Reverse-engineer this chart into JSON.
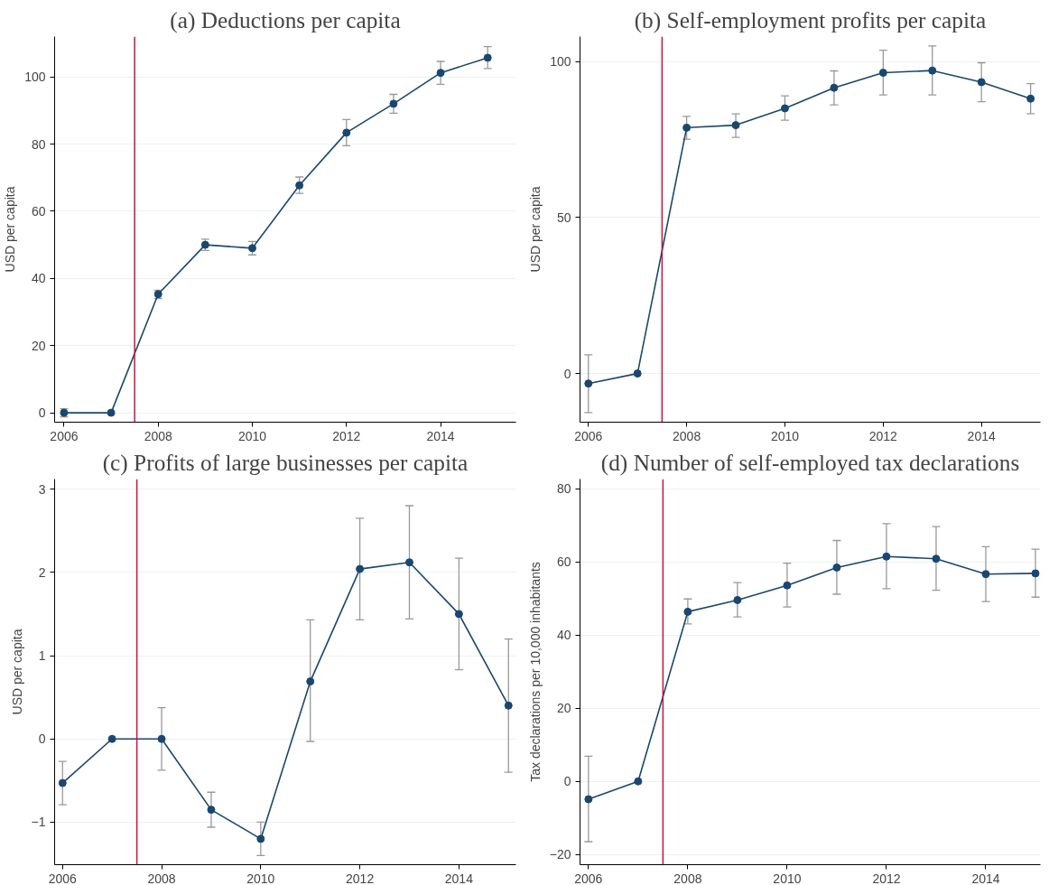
{
  "chart_data": [
    {
      "type": "line",
      "title": "(a) Deductions per capita",
      "ylabel": "USD per capita",
      "x": [
        2006,
        2007,
        2008,
        2009,
        2010,
        2011,
        2012,
        2013,
        2014,
        2015
      ],
      "xlim": [
        2005.8,
        2015.6
      ],
      "xticks": [
        2006,
        2008,
        2010,
        2012,
        2014
      ],
      "ylim": [
        -2.8,
        112
      ],
      "yticks": [
        0,
        20,
        40,
        60,
        80,
        100
      ],
      "grid": "y",
      "marker": "circle",
      "line_style": "solid",
      "series": [
        {
          "color": "#1a476f",
          "values": [
            0,
            0,
            35.3,
            50,
            49,
            67.7,
            83.4,
            92,
            101.2,
            105.7
          ],
          "errors": [
            [
              -1.2,
              1.2
            ],
            null,
            [
              34,
              36.5
            ],
            [
              48.3,
              51.7
            ],
            [
              47,
              51
            ],
            [
              65.3,
              70.2
            ],
            [
              79.5,
              87.3
            ],
            [
              89.2,
              94.8
            ],
            [
              97.8,
              104.6
            ],
            [
              102.5,
              109
            ]
          ]
        }
      ],
      "ref_lines": [
        {
          "axis": "x",
          "value": 2007.5,
          "color": "#d0103a"
        }
      ]
    },
    {
      "type": "line",
      "title": "(b) Self-employment profits per capita",
      "ylabel": "USD per capita",
      "x": [
        2006,
        2007,
        2008,
        2009,
        2010,
        2011,
        2012,
        2013,
        2014,
        2015
      ],
      "xlim": [
        2005.83,
        2015.2
      ],
      "xticks": [
        2006,
        2008,
        2010,
        2012,
        2014
      ],
      "ylim": [
        -15.6,
        108
      ],
      "yticks": [
        0,
        50,
        100
      ],
      "grid": "y",
      "marker": "circle",
      "line_style": "solid",
      "series": [
        {
          "color": "#1a476f",
          "values": [
            -3.2,
            0,
            78.8,
            79.6,
            85,
            91.6,
            96.4,
            97.1,
            93.4,
            88.1
          ],
          "errors": [
            [
              -12.5,
              6
            ],
            null,
            [
              75.1,
              82.4
            ],
            [
              75.7,
              83.2
            ],
            [
              81.2,
              89
            ],
            [
              86.1,
              97
            ],
            [
              89.3,
              103.6
            ],
            [
              89.3,
              105
            ],
            [
              87.1,
              99.6
            ],
            [
              83.3,
              92.9
            ]
          ]
        }
      ],
      "ref_lines": [
        {
          "axis": "x",
          "value": 2007.5,
          "color": "#d0103a"
        }
      ]
    },
    {
      "type": "line",
      "title": "(c) Profits of large businesses per capita",
      "ylabel": "USD per capita",
      "x": [
        2006,
        2007,
        2008,
        2009,
        2010,
        2011,
        2012,
        2013,
        2014,
        2015
      ],
      "xlim": [
        2005.84,
        2015.15
      ],
      "xticks": [
        2006,
        2008,
        2010,
        2012,
        2014
      ],
      "ylim": [
        -1.51,
        3.12
      ],
      "yticks": [
        -1,
        0,
        1,
        2,
        3
      ],
      "grid": "y",
      "marker": "circle",
      "line_style": "solid",
      "series": [
        {
          "color": "#1a476f",
          "values": [
            -0.53,
            0,
            0,
            -0.85,
            -1.2,
            0.69,
            2.04,
            2.12,
            1.5,
            0.4
          ],
          "errors": [
            [
              -0.79,
              -0.27
            ],
            null,
            [
              -0.375,
              0.375
            ],
            [
              -1.06,
              -0.64
            ],
            [
              -1.4,
              -1.0
            ],
            [
              -0.03,
              1.43
            ],
            [
              1.43,
              2.65
            ],
            [
              1.44,
              2.8
            ],
            [
              0.83,
              2.17
            ],
            [
              -0.4,
              1.2
            ]
          ]
        }
      ],
      "ref_lines": [
        {
          "axis": "x",
          "value": 2007.5,
          "color": "#d0103a"
        }
      ]
    },
    {
      "type": "line",
      "title": "(d) Number of self-employed tax declarations",
      "ylabel": "Tax declarations per 10,000 inhabitants",
      "x": [
        2006,
        2007,
        2008,
        2009,
        2010,
        2011,
        2012,
        2013,
        2014,
        2015
      ],
      "xlim": [
        2005.83,
        2015.1
      ],
      "xticks": [
        2006,
        2008,
        2010,
        2012,
        2014
      ],
      "ylim": [
        -22.8,
        82.7
      ],
      "yticks": [
        -20,
        0,
        20,
        40,
        60,
        80
      ],
      "grid": "y",
      "marker": "circle",
      "line_style": "solid",
      "series": [
        {
          "color": "#1a476f",
          "values": [
            -4.9,
            0,
            46.4,
            49.6,
            53.6,
            58.5,
            61.5,
            60.9,
            56.7,
            56.9
          ],
          "errors": [
            [
              -16.5,
              6.9
            ],
            null,
            [
              43.1,
              49.9
            ],
            [
              45,
              54.4
            ],
            [
              47.7,
              59.7
            ],
            [
              51.2,
              65.9
            ],
            [
              52.7,
              70.5
            ],
            [
              52.3,
              69.7
            ],
            [
              49.2,
              64.2
            ],
            [
              50.4,
              63.5
            ]
          ]
        }
      ],
      "ref_lines": [
        {
          "axis": "x",
          "value": 2007.5,
          "color": "#d0103a"
        }
      ]
    }
  ]
}
